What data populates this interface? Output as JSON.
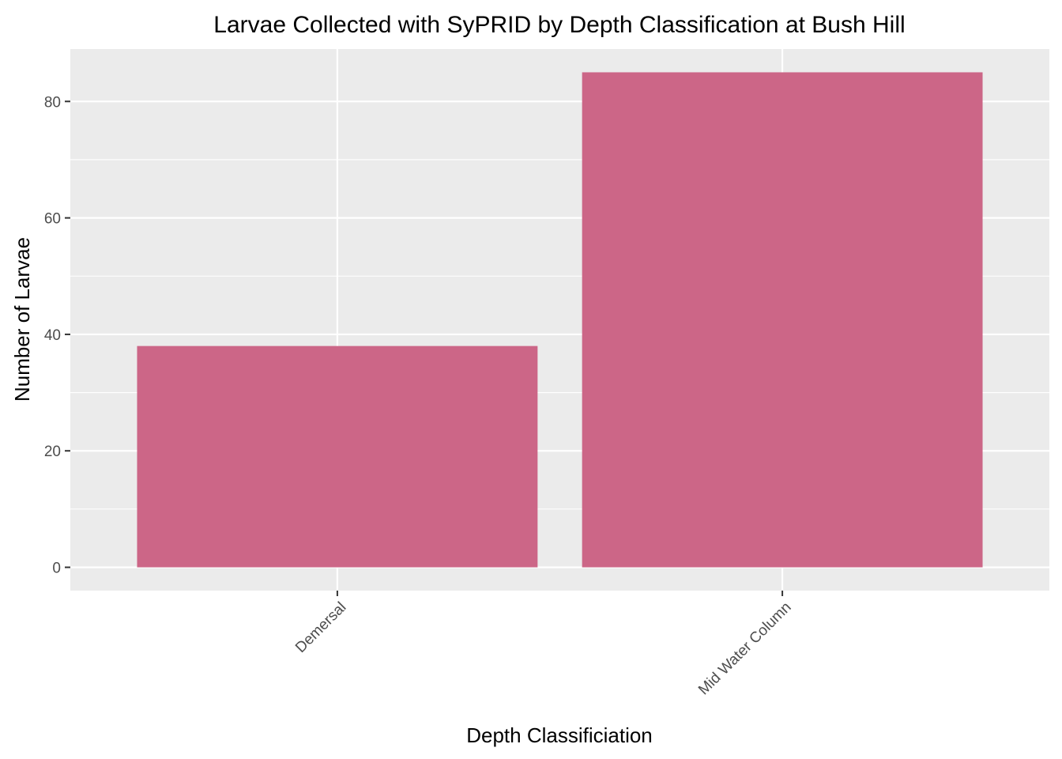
{
  "chart_data": {
    "type": "bar",
    "title": "Larvae Collected with SyPRID by Depth Classification at Bush Hill",
    "xlabel": "Depth Classificiation",
    "ylabel": "Number of Larvae",
    "categories": [
      "Demersal",
      "Mid Water Column"
    ],
    "values": [
      38,
      85
    ],
    "ylim": [
      -4,
      89
    ],
    "y_ticks": [
      0,
      20,
      40,
      60,
      80
    ],
    "grid": true,
    "legend": "none",
    "x_tick_rotation_deg": 45,
    "colors": {
      "bar": "#CC6687",
      "panel_background": "#EBEBEB",
      "grid_line": "#FFFFFF",
      "tick_label": "#4D4D4D",
      "tick_mark": "#333333"
    }
  }
}
